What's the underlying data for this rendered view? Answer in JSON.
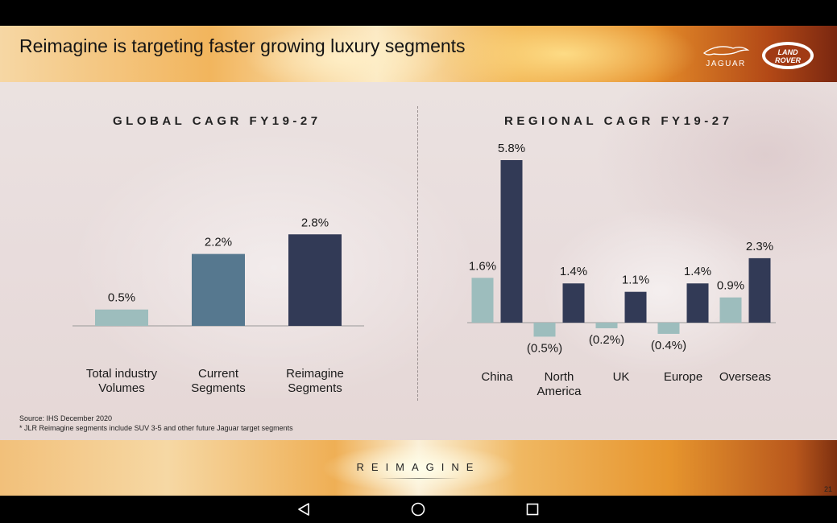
{
  "slide": {
    "title": "Reimagine is targeting faster growing luxury segments",
    "logo_jaguar": "JAGUAR",
    "logo_land_rover_line1": "LAND",
    "logo_land_rover_line2": "ROVER",
    "source_line1": "Source: IHS December 2020",
    "source_line2": "* JLR Reimagine segments include SUV 3-5 and other future Jaguar target segments",
    "footer_brand": "REIMAGINE",
    "page_number": "21"
  },
  "colors": {
    "light_teal": "#9dbdbd",
    "steel_blue": "#56788f",
    "navy": "#323a56",
    "axis": "#999999",
    "text": "#1a1a1a"
  },
  "navbar": {
    "back_icon": "triangle-back-icon",
    "home_icon": "circle-home-icon",
    "recents_icon": "square-recents-icon"
  },
  "chart_data": [
    {
      "type": "bar",
      "title": "GLOBAL CAGR FY19-27",
      "categories": [
        [
          "Total industry",
          "Volumes"
        ],
        [
          "Current",
          "Segments"
        ],
        [
          "Reimagine",
          "Segments"
        ]
      ],
      "values": [
        0.5,
        2.2,
        2.8
      ],
      "value_labels": [
        "0.5%",
        "2.2%",
        "2.8%"
      ],
      "bar_colors": [
        "#9dbdbd",
        "#56788f",
        "#323a56"
      ],
      "ylim": [
        0,
        3.2
      ],
      "grid": false,
      "legend": "none"
    },
    {
      "type": "bar",
      "title": "REGIONAL CAGR FY19-27",
      "categories": [
        [
          "China"
        ],
        [
          "North",
          "America"
        ],
        [
          "UK"
        ],
        [
          "Europe"
        ],
        [
          "Overseas"
        ]
      ],
      "series": [
        {
          "color": "#9dbdbd",
          "values": [
            1.6,
            -0.5,
            -0.2,
            -0.4,
            0.9
          ],
          "value_labels": [
            "1.6%",
            "(0.5%)",
            "(0.2%)",
            "(0.4%)",
            "0.9%"
          ]
        },
        {
          "color": "#323a56",
          "values": [
            5.8,
            1.4,
            1.1,
            1.4,
            2.3
          ],
          "value_labels": [
            "5.8%",
            "1.4%",
            "1.1%",
            "1.4%",
            "2.3%"
          ]
        }
      ],
      "ylim": [
        -0.8,
        6.3
      ],
      "grid": false,
      "legend": "none"
    }
  ]
}
